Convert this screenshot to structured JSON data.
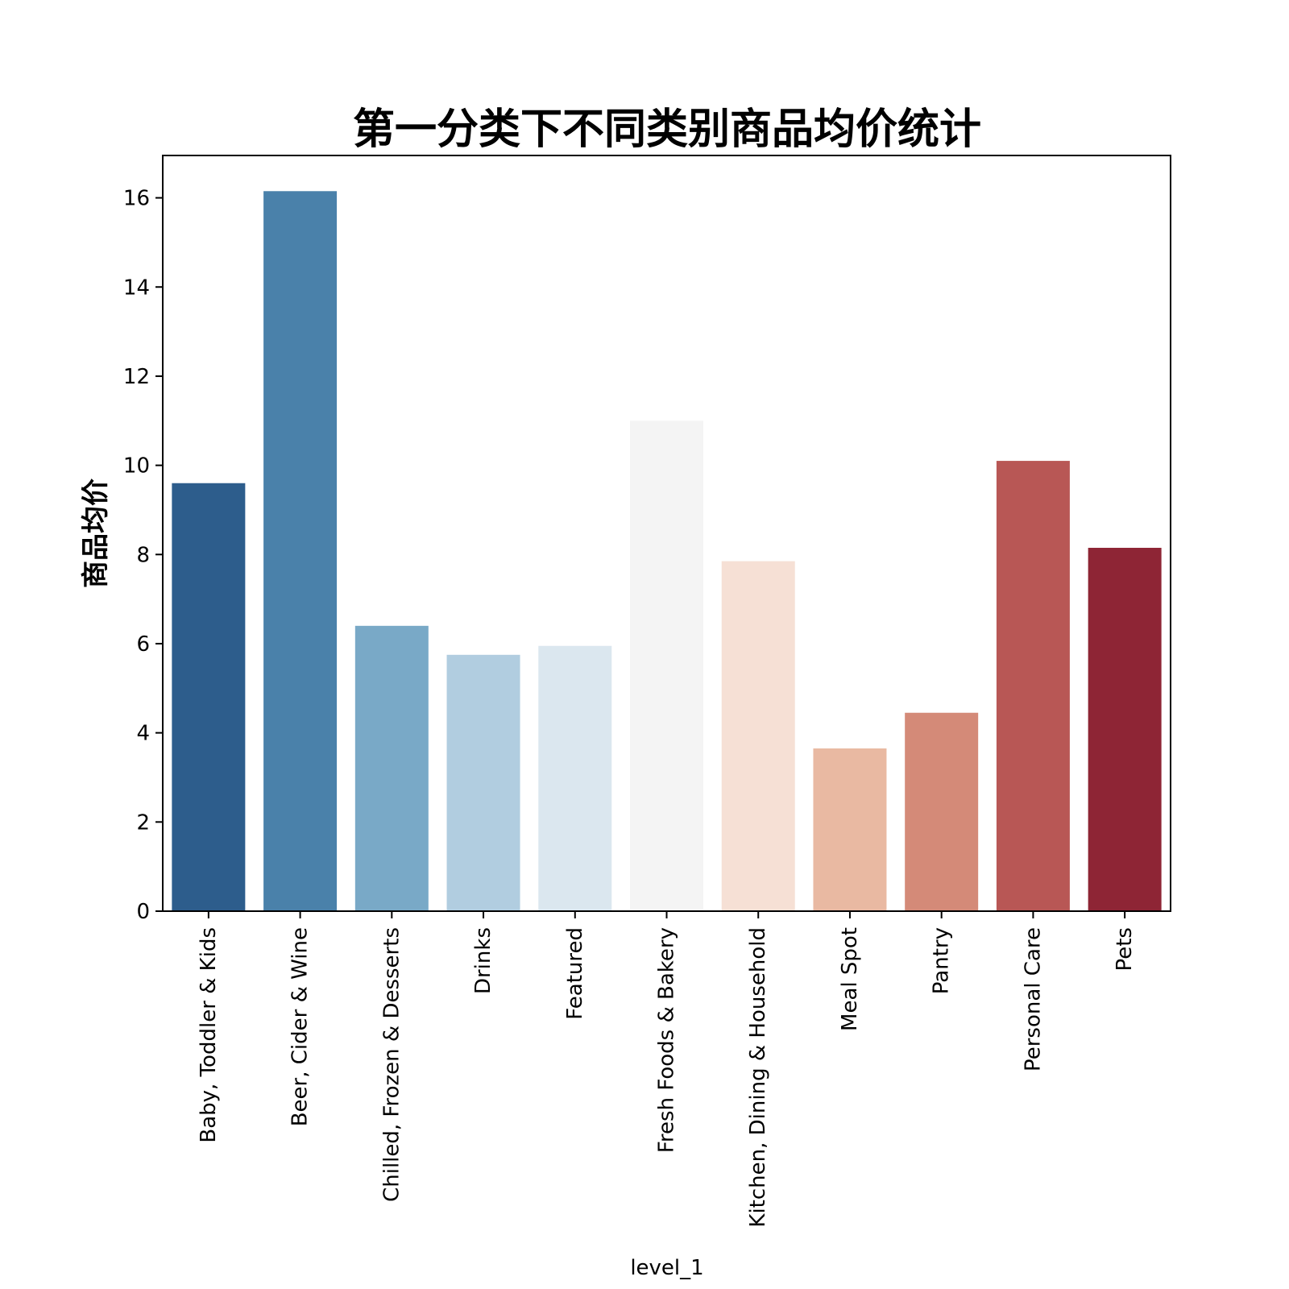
{
  "chart_data": {
    "type": "bar",
    "title": "第一分类下不同类别商品均价统计",
    "xlabel": "level_1",
    "ylabel": "商品均价",
    "categories": [
      "Baby, Toddler & Kids",
      "Beer, Cider & Wine",
      "Chilled, Frozen & Desserts",
      "Drinks",
      "Featured",
      "Fresh Foods & Bakery",
      "Kitchen, Dining & Household",
      "Meal Spot",
      "Pantry",
      "Personal Care",
      "Pets"
    ],
    "values": [
      9.6,
      16.15,
      6.4,
      5.75,
      5.95,
      11.0,
      7.85,
      3.65,
      4.45,
      10.1,
      8.15
    ],
    "colors": [
      "#2d5d8c",
      "#4a81aa",
      "#79a9c7",
      "#b1cde0",
      "#dbe7ef",
      "#f4f4f4",
      "#f6e0d5",
      "#e9b9a2",
      "#d48a78",
      "#b85755",
      "#8e2535"
    ],
    "yticks": [
      "0",
      "2",
      "4",
      "6",
      "8",
      "10",
      "12",
      "14",
      "16"
    ],
    "ylim": [
      0,
      16.95
    ],
    "grid": false,
    "legend": false
  }
}
